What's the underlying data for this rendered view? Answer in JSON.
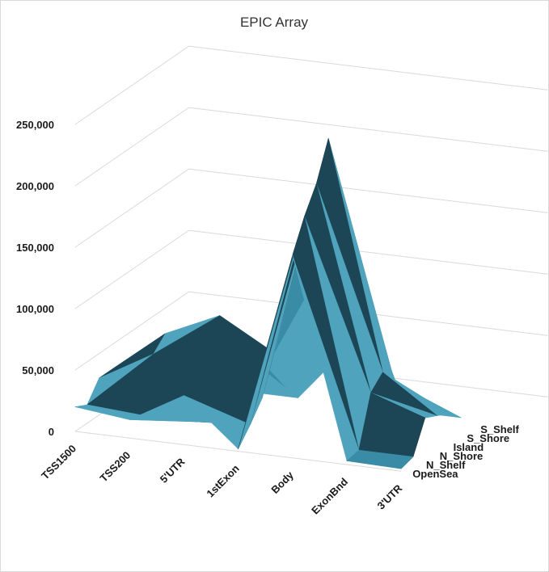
{
  "chart_data": {
    "type": "surface",
    "title": "EPIC Array",
    "categories": [
      "TSS1500",
      "TSS200",
      "5'UTR",
      "1stExon",
      "Body",
      "ExonBnd",
      "3'UTR"
    ],
    "series": [
      {
        "name": "OpenSea",
        "values": [
          20000,
          15000,
          40000,
          2000,
          165000,
          3000,
          2000
        ]
      },
      {
        "name": "N_Shelf",
        "values": [
          15000,
          12000,
          12000,
          15000,
          190000,
          5000,
          5000
        ]
      },
      {
        "name": "N_Shore",
        "values": [
          30000,
          55000,
          65000,
          30000,
          210000,
          45000,
          30000
        ]
      },
      {
        "name": "Island",
        "values": [
          30000,
          65000,
          85000,
          60000,
          240000,
          55000,
          25000
        ]
      },
      {
        "name": "S_Shore",
        "values": [
          25000,
          45000,
          55000,
          25000,
          155000,
          40000,
          20000
        ]
      },
      {
        "name": "S_Shelf",
        "values": [
          10000,
          10000,
          10000,
          10000,
          60000,
          10000,
          10000
        ]
      }
    ],
    "yticks": [
      "0",
      "50,000",
      "100,000",
      "150,000",
      "200,000",
      "250,000"
    ],
    "ylim": [
      0,
      250000
    ],
    "legend": "none",
    "colors": {
      "surface_light": "#4fa3bd",
      "surface_mid": "#3a8ba5",
      "surface_dark": "#1c4655",
      "gridline": "#d9d9d9"
    }
  }
}
